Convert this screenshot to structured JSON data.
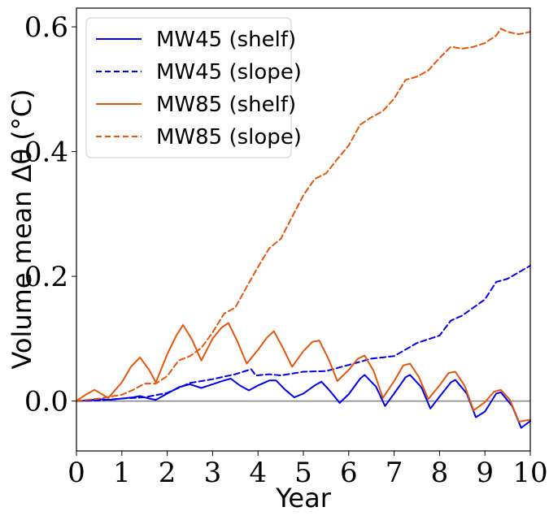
{
  "chart_data": {
    "type": "line",
    "xlabel": "Year",
    "ylabel": "Volume mean Δθ (°C)",
    "xlim": [
      0,
      10
    ],
    "ylim": [
      -0.08,
      0.63
    ],
    "xticks": [
      "0",
      "1",
      "2",
      "3",
      "4",
      "5",
      "6",
      "7",
      "8",
      "9",
      "10"
    ],
    "yticks": [
      "0.0",
      "0.2",
      "0.4",
      "0.6"
    ],
    "legend_position": "top-left",
    "grid": false,
    "reference_line_y": 0,
    "series": [
      {
        "name": "MW45 (shelf)",
        "color": "#0000ee",
        "dash": "solid",
        "x": [
          0,
          0.25,
          0.5,
          0.75,
          1,
          1.25,
          1.4,
          1.6,
          1.75,
          2,
          2.25,
          2.5,
          2.75,
          3,
          3.25,
          3.4,
          3.6,
          3.8,
          4,
          4.25,
          4.4,
          4.6,
          4.8,
          5,
          5.25,
          5.4,
          5.6,
          5.8,
          6,
          6.25,
          6.35,
          6.6,
          6.8,
          7,
          7.25,
          7.35,
          7.6,
          7.8,
          8,
          8.25,
          8.35,
          8.6,
          8.8,
          9,
          9.25,
          9.35,
          9.6,
          9.8,
          10
        ],
        "y": [
          0,
          0.001,
          0.003,
          0.002,
          0.004,
          0.006,
          0.008,
          0.004,
          0.002,
          0.012,
          0.022,
          0.027,
          0.021,
          0.027,
          0.033,
          0.036,
          0.025,
          0.017,
          0.025,
          0.033,
          0.033,
          0.018,
          0.006,
          0.012,
          0.025,
          0.031,
          0.015,
          -0.003,
          0.011,
          0.036,
          0.042,
          0.023,
          -0.008,
          0.012,
          0.038,
          0.042,
          0.022,
          -0.012,
          0.007,
          0.03,
          0.034,
          0.012,
          -0.026,
          -0.017,
          0.012,
          0.014,
          -0.008,
          -0.043,
          -0.032
        ]
      },
      {
        "name": "MW45 (slope)",
        "color": "#0000ee",
        "dash": "dashed",
        "x": [
          0,
          0.5,
          1,
          1.5,
          2,
          2.25,
          2.5,
          3,
          3.5,
          3.85,
          3.95,
          4.25,
          4.5,
          5,
          5.5,
          6,
          6.5,
          7,
          7.5,
          8,
          8.25,
          8.5,
          9,
          9.25,
          9.5,
          10
        ],
        "y": [
          0,
          0.001,
          0.004,
          0.006,
          0.013,
          0.021,
          0.029,
          0.035,
          0.043,
          0.051,
          0.041,
          0.043,
          0.041,
          0.047,
          0.048,
          0.058,
          0.068,
          0.072,
          0.093,
          0.105,
          0.129,
          0.137,
          0.163,
          0.191,
          0.196,
          0.217
        ]
      },
      {
        "name": "MW85 (shelf)",
        "color": "#e6550d",
        "dash": "solid",
        "x": [
          0,
          0.2,
          0.4,
          0.7,
          1,
          1.2,
          1.4,
          1.6,
          1.75,
          2,
          2.2,
          2.35,
          2.55,
          2.75,
          3,
          3.2,
          3.35,
          3.55,
          3.75,
          4,
          4.2,
          4.35,
          4.55,
          4.75,
          5,
          5.2,
          5.35,
          5.55,
          5.75,
          6,
          6.2,
          6.35,
          6.55,
          6.75,
          7,
          7.2,
          7.35,
          7.55,
          7.75,
          8,
          8.2,
          8.35,
          8.55,
          8.75,
          9,
          9.2,
          9.35,
          9.55,
          9.75,
          10
        ],
        "y": [
          0,
          0.01,
          0.018,
          0.005,
          0.03,
          0.055,
          0.07,
          0.05,
          0.03,
          0.075,
          0.105,
          0.122,
          0.098,
          0.065,
          0.1,
          0.118,
          0.125,
          0.095,
          0.06,
          0.082,
          0.102,
          0.112,
          0.085,
          0.055,
          0.08,
          0.095,
          0.097,
          0.068,
          0.032,
          0.05,
          0.068,
          0.073,
          0.048,
          0.005,
          0.032,
          0.057,
          0.06,
          0.038,
          0.003,
          0.025,
          0.045,
          0.047,
          0.025,
          -0.015,
          -0.002,
          0.015,
          0.018,
          0.002,
          -0.033,
          -0.03
        ]
      },
      {
        "name": "MW85 (slope)",
        "color": "#e6550d",
        "dash": "dashed",
        "x": [
          0,
          0.5,
          1,
          1.25,
          1.5,
          1.75,
          2,
          2.25,
          2.5,
          2.75,
          3,
          3.25,
          3.5,
          3.75,
          4,
          4.25,
          4.5,
          4.75,
          5,
          5.25,
          5.5,
          5.75,
          6,
          6.25,
          6.5,
          6.75,
          7,
          7.25,
          7.5,
          7.75,
          8,
          8.25,
          8.5,
          8.75,
          9,
          9.25,
          9.35,
          9.5,
          9.75,
          10
        ],
        "y": [
          0,
          0.004,
          0.01,
          0.018,
          0.028,
          0.028,
          0.04,
          0.065,
          0.072,
          0.085,
          0.11,
          0.14,
          0.15,
          0.183,
          0.215,
          0.245,
          0.26,
          0.295,
          0.33,
          0.356,
          0.365,
          0.388,
          0.41,
          0.443,
          0.455,
          0.465,
          0.485,
          0.515,
          0.52,
          0.53,
          0.55,
          0.568,
          0.565,
          0.568,
          0.574,
          0.586,
          0.597,
          0.592,
          0.588,
          0.592
        ]
      }
    ]
  }
}
